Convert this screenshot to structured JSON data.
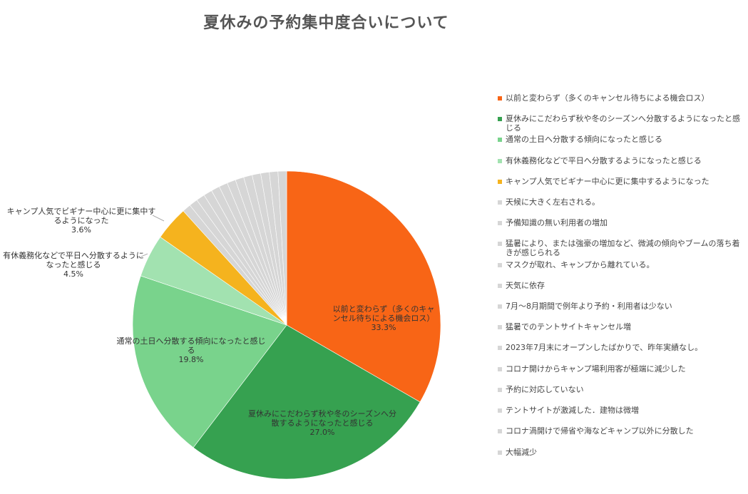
{
  "chart_data": {
    "type": "pie",
    "title": "夏休みの予約集中度合いについて",
    "slices": [
      {
        "label": "以前と変わらず（多くのキャンセル待ちによる機会ロス）",
        "pie_label": "以前と変わらず（多くのキャ\nンセル待ちによる機会ロス）",
        "value": 33.3,
        "pct": "33.3%",
        "color": "#f86516"
      },
      {
        "label": "夏休みにこだわらず秋や冬のシーズンへ分散するようになったと感じる",
        "pie_label": "夏休みにこだわらず秋や冬のシーズンへ分\n散するようになったと感じる",
        "value": 27.0,
        "pct": "27.0%",
        "color": "#36a150"
      },
      {
        "label": "通常の土日へ分散する傾向になったと感じる",
        "pie_label": "通常の土日へ分散する傾向になったと感じ\nる",
        "value": 19.8,
        "pct": "19.8%",
        "color": "#79d38c"
      },
      {
        "label": "有休義務化などで平日へ分散するようになったと感じる",
        "pie_label": "有休義務化などで平日へ分散するように\nなったと感じる",
        "value": 4.5,
        "pct": "4.5%",
        "color": "#a2e2b0"
      },
      {
        "label": "キャンプ人気でビギナー中心に更に集中するようになった",
        "pie_label": "キャンプ人気でビギナー中心に更に集中す\nるようになった",
        "value": 3.6,
        "pct": "3.6%",
        "color": "#f5b31e"
      },
      {
        "label": "天候に大きく左右される。",
        "value": 0.9,
        "color": "#d6d6d6"
      },
      {
        "label": "予備知識の無い利用者の増加",
        "value": 0.9,
        "color": "#d6d6d6"
      },
      {
        "label": "猛暑により、または強豪の増加など、微減の傾向やブームの落ち着きが感じられる",
        "value": 0.9,
        "color": "#d6d6d6"
      },
      {
        "label": "マスクが取れ、キャンプから離れている。",
        "value": 0.9,
        "color": "#d6d6d6"
      },
      {
        "label": "天気に依存",
        "value": 0.9,
        "color": "#d6d6d6"
      },
      {
        "label": "7月〜8月期間で例年より予約・利用者は少ない",
        "value": 0.9,
        "color": "#d6d6d6"
      },
      {
        "label": "猛暑でのテントサイトキャンセル増",
        "value": 0.9,
        "color": "#d6d6d6"
      },
      {
        "label": "2023年7月末にオープンしたばかりで、昨年実績なし。",
        "value": 0.9,
        "color": "#d6d6d6"
      },
      {
        "label": "コロナ開けからキャンプ場利用客が極端に減少した",
        "value": 0.9,
        "color": "#d6d6d6"
      },
      {
        "label": "予約に対応していない",
        "value": 0.9,
        "color": "#d6d6d6"
      },
      {
        "label": "テントサイトが激減した．建物は微増",
        "value": 0.9,
        "color": "#d6d6d6"
      },
      {
        "label": "コロナ渦開けで帰省や海などキャンプ以外に分散した",
        "value": 0.9,
        "color": "#d6d6d6"
      },
      {
        "label": "大幅減少",
        "value": 0.9,
        "color": "#d6d6d6"
      }
    ],
    "legend_position": "right"
  }
}
